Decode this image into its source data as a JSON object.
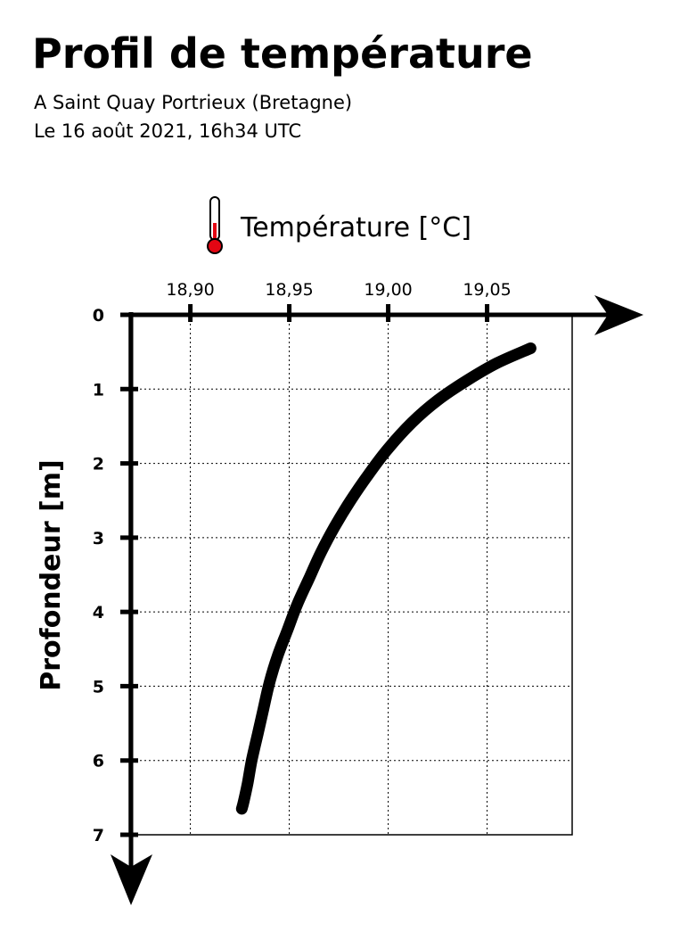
{
  "header": {
    "title": "Profil de température",
    "location": "A Saint Quay Portrieux  (Bretagne)",
    "datetime": "Le 16 août 2021, 16h34 UTC"
  },
  "chart_data": {
    "type": "line",
    "xlabel": "Température [°C]",
    "ylabel": "Profondeur [m]",
    "x_ticks": [
      18.9,
      18.95,
      19.0,
      19.05
    ],
    "x_tick_labels": [
      "18,90",
      "18,95",
      "19,00",
      "19,05"
    ],
    "y_ticks": [
      0,
      1,
      2,
      3,
      4,
      5,
      6,
      7
    ],
    "y_tick_labels": [
      "0",
      "1",
      "2",
      "3",
      "4",
      "5",
      "6",
      "7"
    ],
    "xlim": [
      18.87,
      19.093
    ],
    "ylim": [
      0,
      7
    ],
    "y_inverted": true,
    "grid": true,
    "line_color": "#000000",
    "thermometer_icon": "thermometer-icon",
    "thermometer_fill": "#e30613",
    "series": [
      {
        "x": [
          19.072,
          19.055,
          19.04,
          19.025,
          19.012,
          19.0,
          18.99,
          18.981,
          18.973,
          18.966,
          18.96,
          18.954,
          18.949,
          18.944,
          18.94,
          18.937,
          18.934,
          18.931,
          18.929,
          18.927,
          18.926
        ],
        "y": [
          0.45,
          0.65,
          0.88,
          1.15,
          1.45,
          1.8,
          2.15,
          2.5,
          2.85,
          3.2,
          3.55,
          3.9,
          4.25,
          4.6,
          4.95,
          5.3,
          5.65,
          6.0,
          6.3,
          6.55,
          6.65
        ]
      }
    ]
  }
}
